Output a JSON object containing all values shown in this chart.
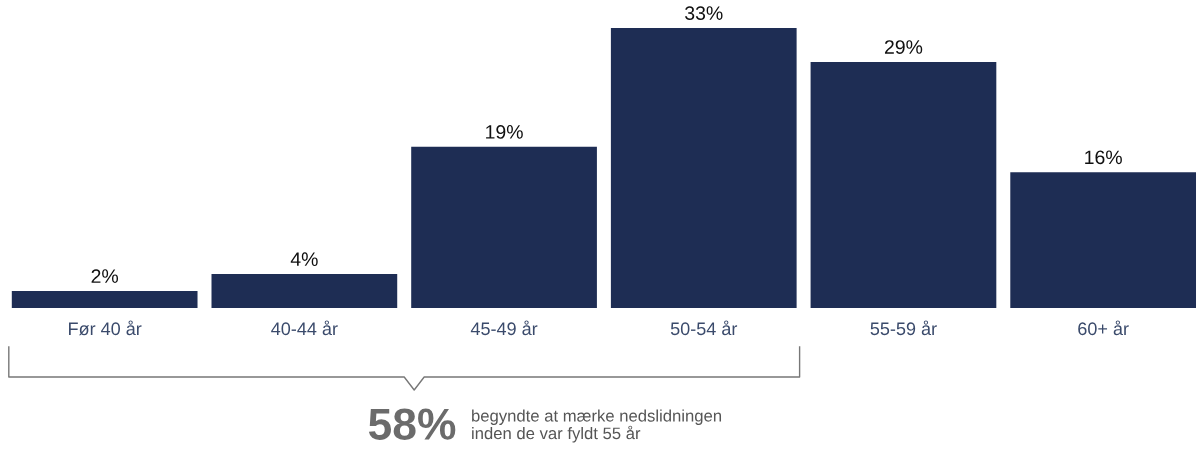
{
  "chart_data": {
    "type": "bar",
    "categories": [
      "Før 40 år",
      "40-44 år",
      "45-49 år",
      "50-54 år",
      "55-59 år",
      "60+ år"
    ],
    "values": [
      2,
      4,
      19,
      33,
      29,
      16
    ],
    "value_labels": [
      "2%",
      "4%",
      "19%",
      "33%",
      "29%",
      "16%"
    ],
    "color": "#1e2d54",
    "ylim": [
      0,
      33
    ],
    "tick_labels": "x",
    "grid": false,
    "legend": false,
    "annotations": [
      "58%",
      "begyndte at mærke nedslidningen\ninden de var fyldt 55 år"
    ]
  }
}
